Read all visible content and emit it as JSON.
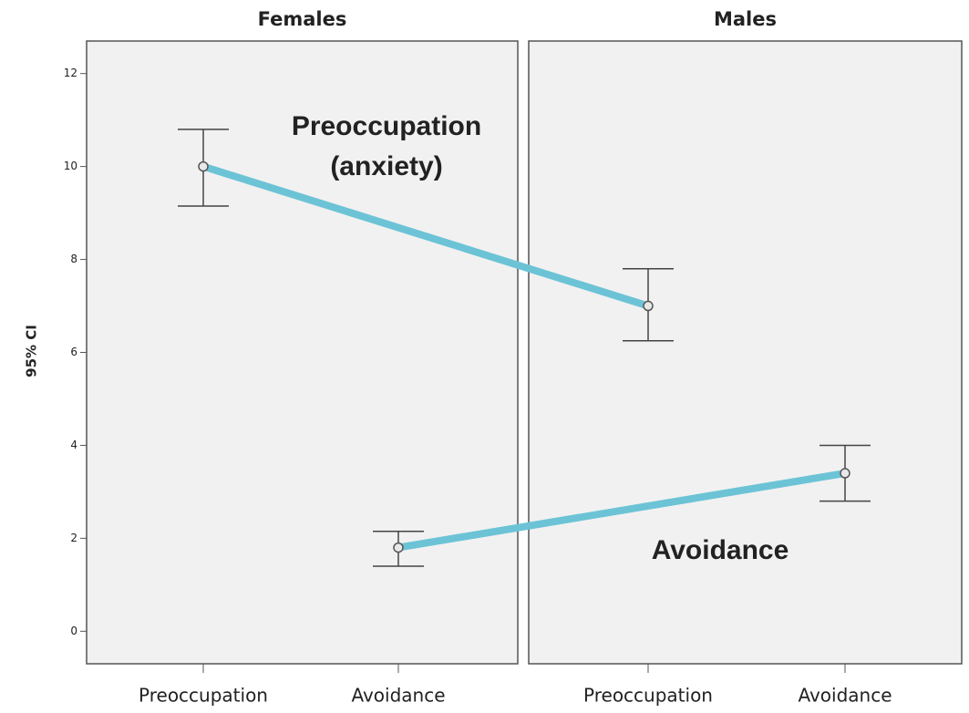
{
  "chart_data": {
    "type": "errorbar",
    "ylabel": "95% CI",
    "ylim": [
      -0.7,
      12.7
    ],
    "yticks": [
      0,
      2,
      4,
      6,
      8,
      10,
      12
    ],
    "connector_color": "#6cc3d6",
    "panels": [
      {
        "title": "Females",
        "categories": [
          "Preoccupation",
          "Avoidance"
        ],
        "values": [
          10.0,
          1.8
        ],
        "lower": [
          9.15,
          1.4
        ],
        "upper": [
          10.8,
          2.15
        ]
      },
      {
        "title": "Males",
        "categories": [
          "Preoccupation",
          "Avoidance"
        ],
        "values": [
          7.0,
          3.4
        ],
        "lower": [
          6.25,
          2.8
        ],
        "upper": [
          7.8,
          4.0
        ]
      }
    ],
    "annotations": [
      {
        "lines": [
          "Preoccupation",
          "(anxiety)"
        ]
      },
      {
        "lines": [
          "Avoidance"
        ]
      }
    ]
  }
}
